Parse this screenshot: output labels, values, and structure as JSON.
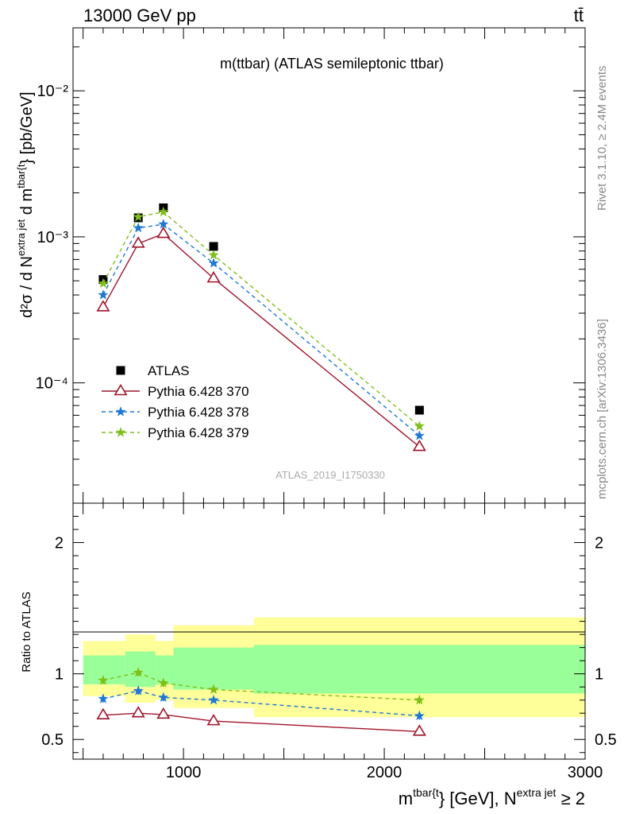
{
  "header": {
    "left": "13000 GeV pp",
    "right": "tt̄"
  },
  "side": {
    "rivet": "Rivet 3.1.10, ≥ 2.4M events",
    "mcplots": "mcplots.cern.ch [arXiv:1306.3436]"
  },
  "chart_data": [
    {
      "type": "scatter",
      "title": "m(ttbar) (ATLAS semileptonic ttbar)",
      "watermark": "ATLAS_2019_I1750330",
      "ylabel": {
        "main": "d²σ / d N",
        "sup1": "extra jet",
        "mid": " d m",
        "sup2": "tbar{t",
        "end": "} [pb/GeV]"
      },
      "xlabel": {
        "m": "m",
        "sup1": "tbar{t",
        "mid": "} [GeV], N",
        "sup2": "extra jet",
        "end": " ≥ 2"
      },
      "y_scale": "log",
      "ylim": [
        1.5e-05,
        0.027
      ],
      "xlim": [
        450,
        3000
      ],
      "y_ticks": [
        {
          "value": 0.0001,
          "label": "10⁻⁴"
        },
        {
          "value": 0.001,
          "label": "10⁻³"
        },
        {
          "value": 0.01,
          "label": "10⁻²"
        }
      ],
      "legend_placement": "bottom-left",
      "x": [
        600,
        775,
        900,
        1150,
        2175
      ],
      "series": [
        {
          "name": "ATLAS",
          "color": "#000000",
          "marker": "square",
          "line": "none",
          "values": [
            0.00051,
            0.00135,
            0.00158,
            0.00086,
            6.5e-05
          ]
        },
        {
          "name": "Pythia 6.428 370",
          "color": "#a0142b",
          "marker": "open-triangle",
          "line": "solid",
          "values": [
            0.00033,
            0.0009,
            0.00105,
            0.00052,
            3.65e-05
          ]
        },
        {
          "name": "Pythia 6.428 378",
          "color": "#1f78d4",
          "marker": "star",
          "line": "dashed",
          "values": [
            0.0004,
            0.00115,
            0.00122,
            0.00066,
            4.35e-05
          ]
        },
        {
          "name": "Pythia 6.428 379",
          "color": "#7fbf1a",
          "marker": "star",
          "line": "dashed",
          "values": [
            0.00048,
            0.00137,
            0.00148,
            0.00075,
            5.05e-05
          ]
        }
      ]
    },
    {
      "type": "scatter",
      "ylabel": "Ratio to ATLAS",
      "ylim": [
        0.35,
        2.3
      ],
      "xlim": [
        450,
        3000
      ],
      "x_ticks": [
        {
          "value": 1000,
          "label": "1000"
        },
        {
          "value": 2000,
          "label": "2000"
        },
        {
          "value": 3000,
          "label": "3000"
        }
      ],
      "y_ticks": [
        {
          "value": 0.5,
          "label": "0.5"
        },
        {
          "value": 1,
          "label": "1"
        },
        {
          "value": 2,
          "label": "2"
        }
      ],
      "bands": [
        {
          "x0": 500,
          "x1": 710,
          "yellow": [
            0.83,
            1.25
          ],
          "green": [
            0.92,
            1.14
          ]
        },
        {
          "x0": 710,
          "x1": 860,
          "yellow": [
            0.78,
            1.3
          ],
          "green": [
            0.9,
            1.17
          ]
        },
        {
          "x0": 860,
          "x1": 950,
          "yellow": [
            0.8,
            1.25
          ],
          "green": [
            0.92,
            1.14
          ]
        },
        {
          "x0": 950,
          "x1": 1350,
          "yellow": [
            0.74,
            1.37
          ],
          "green": [
            0.88,
            1.2
          ]
        },
        {
          "x0": 1350,
          "x1": 3000,
          "yellow": [
            0.67,
            1.43
          ],
          "green": [
            0.85,
            1.22
          ]
        }
      ],
      "x": [
        600,
        775,
        900,
        1150,
        2175
      ],
      "series": [
        {
          "name": "Pythia 6.428 370",
          "color": "#a0142b",
          "marker": "open-triangle",
          "line": "solid",
          "values": [
            0.685,
            0.7,
            0.69,
            0.64,
            0.56
          ],
          "errors": [
            0.02,
            0.02,
            0.02,
            0.01,
            0.02
          ]
        },
        {
          "name": "Pythia 6.428 378",
          "color": "#1f78d4",
          "marker": "star",
          "line": "dashed",
          "values": [
            0.81,
            0.87,
            0.82,
            0.8,
            0.68
          ],
          "errors": [
            0.03,
            0.03,
            0.03,
            0.02,
            0.03
          ]
        },
        {
          "name": "Pythia 6.428 379",
          "color": "#7fbf1a",
          "marker": "star",
          "line": "dashed",
          "values": [
            0.95,
            1.01,
            0.93,
            0.88,
            0.8
          ],
          "errors": [
            0.03,
            0.03,
            0.03,
            0.02,
            0.03
          ]
        }
      ]
    }
  ]
}
